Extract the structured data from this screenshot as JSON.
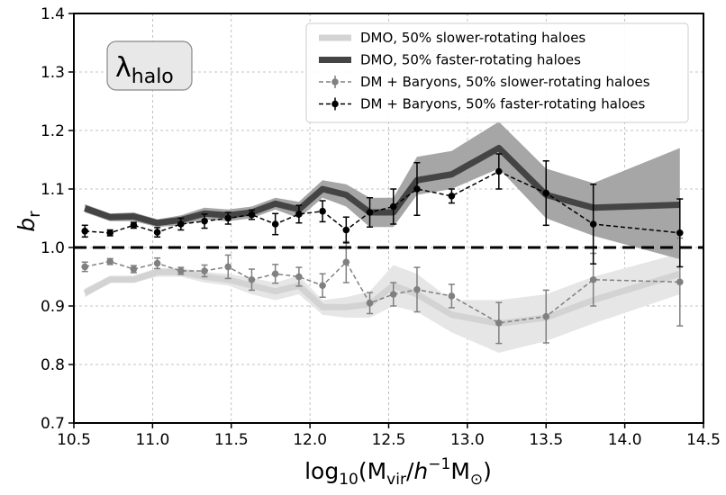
{
  "chart_data": {
    "type": "line",
    "xlabel": {
      "base": "log",
      "base_sub": "10",
      "open": "(M",
      "m_sub": "vir",
      "slash": "/",
      "h": "h",
      "exp": "−1",
      "m2": "M",
      "sun": "⊙",
      "close": ")"
    },
    "ylabel": {
      "main": "b",
      "sub": "r"
    },
    "badge": {
      "main": "λ",
      "sub": "halo"
    },
    "xlim": [
      10.5,
      14.5
    ],
    "ylim": [
      0.7,
      1.4
    ],
    "x_ticks": [
      "10.5",
      "11.0",
      "11.5",
      "12.0",
      "12.5",
      "13.0",
      "13.5",
      "14.0",
      "14.5"
    ],
    "y_ticks": [
      "0.7",
      "0.8",
      "0.9",
      "1.0",
      "1.1",
      "1.2",
      "1.3",
      "1.4"
    ],
    "grid": true,
    "reference_line": 1.0,
    "legend_position": "top-right",
    "series": [
      {
        "name": "DMO, 50% slower-rotating haloes",
        "style": "band-line",
        "color": "#d3d3d3",
        "band_color": "#e6e6e6",
        "x": [
          10.57,
          10.73,
          10.88,
          11.03,
          11.18,
          11.33,
          11.48,
          11.63,
          11.78,
          11.93,
          12.08,
          12.23,
          12.38,
          12.53,
          12.68,
          12.9,
          13.2,
          13.5,
          13.8,
          14.35
        ],
        "y": [
          0.922,
          0.945,
          0.945,
          0.958,
          0.958,
          0.95,
          0.945,
          0.935,
          0.925,
          0.935,
          0.898,
          0.898,
          0.903,
          0.935,
          0.92,
          0.885,
          0.87,
          0.88,
          0.91,
          0.955
        ],
        "lower": [
          0.915,
          0.94,
          0.94,
          0.95,
          0.95,
          0.94,
          0.935,
          0.92,
          0.91,
          0.92,
          0.885,
          0.88,
          0.88,
          0.9,
          0.89,
          0.855,
          0.82,
          0.84,
          0.87,
          0.92
        ],
        "upper": [
          0.93,
          0.952,
          0.952,
          0.965,
          0.965,
          0.958,
          0.955,
          0.948,
          0.94,
          0.952,
          0.91,
          0.915,
          0.925,
          0.97,
          0.955,
          0.91,
          0.91,
          0.92,
          0.95,
          0.99
        ]
      },
      {
        "name": "DMO, 50% faster-rotating haloes",
        "style": "band-line",
        "color": "#444444",
        "band_color": "#a6a6a6",
        "x": [
          10.57,
          10.73,
          10.88,
          11.03,
          11.18,
          11.33,
          11.48,
          11.63,
          11.78,
          11.93,
          12.08,
          12.23,
          12.38,
          12.53,
          12.68,
          12.9,
          13.2,
          13.5,
          13.8,
          14.35
        ],
        "y": [
          1.067,
          1.052,
          1.053,
          1.042,
          1.047,
          1.058,
          1.055,
          1.06,
          1.075,
          1.065,
          1.1,
          1.09,
          1.06,
          1.06,
          1.115,
          1.125,
          1.17,
          1.09,
          1.068,
          1.073
        ],
        "lower": [
          1.06,
          1.045,
          1.045,
          1.035,
          1.038,
          1.048,
          1.045,
          1.05,
          1.065,
          1.05,
          1.085,
          1.07,
          1.035,
          1.035,
          1.09,
          1.1,
          1.135,
          1.05,
          1.02,
          0.98
        ],
        "upper": [
          1.074,
          1.058,
          1.06,
          1.048,
          1.055,
          1.068,
          1.065,
          1.07,
          1.085,
          1.078,
          1.115,
          1.108,
          1.085,
          1.085,
          1.155,
          1.165,
          1.215,
          1.135,
          1.11,
          1.17
        ]
      },
      {
        "name": "DM + Baryons, 50% slower-rotating haloes",
        "style": "errorbar-dashed",
        "color": "#808080",
        "x": [
          10.57,
          10.73,
          10.88,
          11.03,
          11.18,
          11.33,
          11.48,
          11.63,
          11.78,
          11.93,
          12.08,
          12.23,
          12.38,
          12.53,
          12.68,
          12.9,
          13.2,
          13.5,
          13.8,
          14.35
        ],
        "y": [
          0.967,
          0.976,
          0.963,
          0.973,
          0.96,
          0.96,
          0.967,
          0.945,
          0.955,
          0.95,
          0.935,
          0.975,
          0.905,
          0.92,
          0.928,
          0.917,
          0.871,
          0.882,
          0.945,
          0.941
        ],
        "err": [
          0.008,
          0.005,
          0.006,
          0.009,
          0.006,
          0.01,
          0.02,
          0.018,
          0.016,
          0.016,
          0.02,
          0.035,
          0.018,
          0.02,
          0.038,
          0.02,
          0.035,
          0.045,
          0.045,
          0.075
        ]
      },
      {
        "name": "DM + Baryons, 50% faster-rotating haloes",
        "style": "errorbar-dashed",
        "color": "#000000",
        "x": [
          10.57,
          10.73,
          10.88,
          11.03,
          11.18,
          11.33,
          11.48,
          11.63,
          11.78,
          11.93,
          12.08,
          12.23,
          12.38,
          12.53,
          12.68,
          12.9,
          13.2,
          13.5,
          13.8,
          14.35
        ],
        "y": [
          1.028,
          1.025,
          1.038,
          1.026,
          1.04,
          1.045,
          1.05,
          1.056,
          1.04,
          1.057,
          1.062,
          1.03,
          1.06,
          1.07,
          1.1,
          1.088,
          1.13,
          1.093,
          1.04,
          1.025
        ],
        "err": [
          0.01,
          0.005,
          0.005,
          0.008,
          0.01,
          0.012,
          0.01,
          0.008,
          0.018,
          0.015,
          0.018,
          0.022,
          0.025,
          0.03,
          0.045,
          0.012,
          0.03,
          0.055,
          0.068,
          0.058
        ]
      }
    ]
  }
}
